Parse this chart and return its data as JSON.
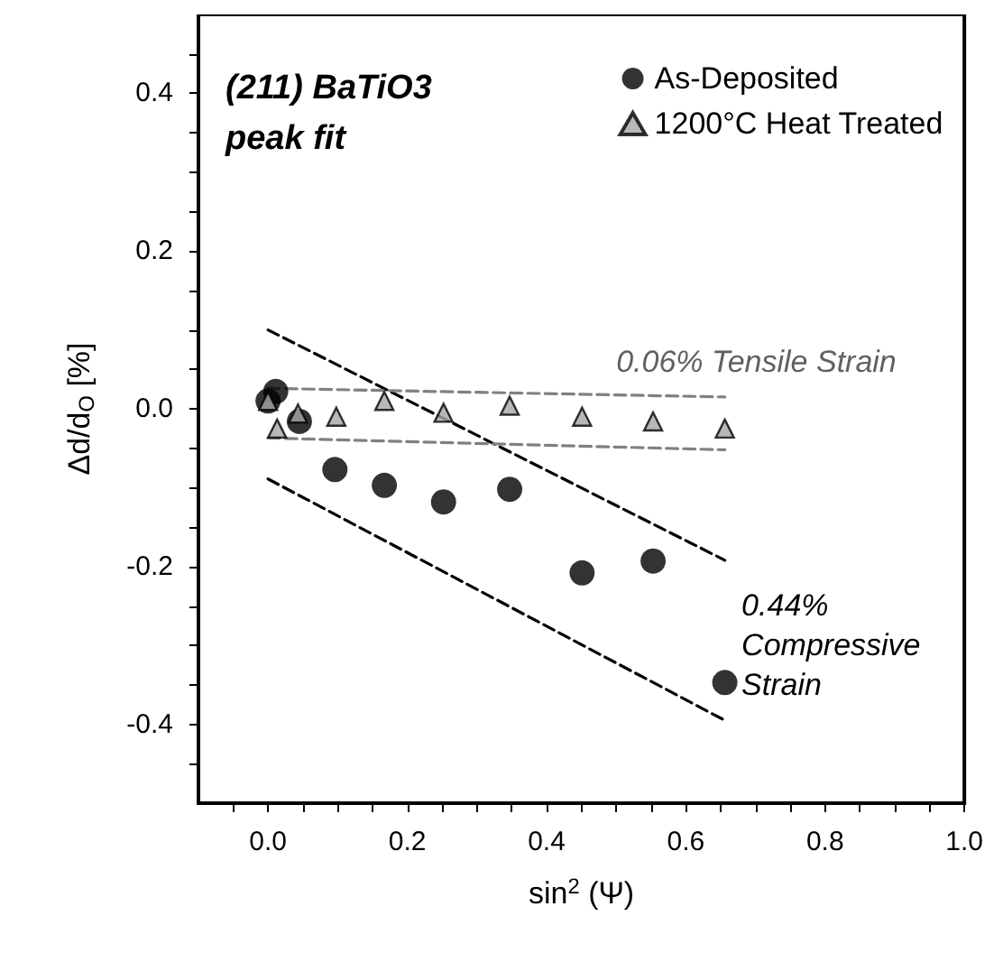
{
  "chart_data": {
    "type": "scatter",
    "title": "(211) BaTiO3\npeak fit",
    "xlabel": "sin$^{2}$ (Ψ)",
    "ylabel": "Δd/d$_{O}$ [%]",
    "xlim": [
      -0.1,
      1.0
    ],
    "ylim": [
      -0.5,
      0.5
    ],
    "xticks": [
      {
        "value": -0.05,
        "label": null
      },
      {
        "value": 0,
        "label": "0.0"
      },
      {
        "value": 0.05,
        "label": null
      },
      {
        "value": 0.1,
        "label": null
      },
      {
        "value": 0.15,
        "label": null
      },
      {
        "value": 0.2,
        "label": "0.2"
      },
      {
        "value": 0.25,
        "label": null
      },
      {
        "value": 0.3,
        "label": null
      },
      {
        "value": 0.35,
        "label": null
      },
      {
        "value": 0.4,
        "label": "0.4"
      },
      {
        "value": 0.45,
        "label": null
      },
      {
        "value": 0.5,
        "label": null
      },
      {
        "value": 0.55,
        "label": null
      },
      {
        "value": 0.6,
        "label": "0.6"
      },
      {
        "value": 0.65,
        "label": null
      },
      {
        "value": 0.7,
        "label": null
      },
      {
        "value": 0.75,
        "label": null
      },
      {
        "value": 0.8,
        "label": "0.8"
      },
      {
        "value": 0.85,
        "label": null
      },
      {
        "value": 0.9,
        "label": null
      },
      {
        "value": 0.95,
        "label": null
      },
      {
        "value": 1.0,
        "label": "1.0"
      }
    ],
    "yticks": [
      {
        "value": -0.45,
        "label": null
      },
      {
        "value": -0.4,
        "label": "-0.4"
      },
      {
        "value": -0.35,
        "label": null
      },
      {
        "value": -0.3,
        "label": null
      },
      {
        "value": -0.25,
        "label": null
      },
      {
        "value": -0.2,
        "label": "-0.2"
      },
      {
        "value": -0.15,
        "label": null
      },
      {
        "value": -0.1,
        "label": null
      },
      {
        "value": -0.05,
        "label": null
      },
      {
        "value": 0,
        "label": "0.0"
      },
      {
        "value": 0.05,
        "label": null
      },
      {
        "value": 0.1,
        "label": null
      },
      {
        "value": 0.15,
        "label": null
      },
      {
        "value": 0.2,
        "label": "0.2"
      },
      {
        "value": 0.25,
        "label": null
      },
      {
        "value": 0.3,
        "label": null
      },
      {
        "value": 0.35,
        "label": null
      },
      {
        "value": 0.4,
        "label": "0.4"
      },
      {
        "value": 0.45,
        "label": null
      }
    ],
    "grid": false,
    "legend": "top right",
    "series": [
      {
        "name": "As-Deposited",
        "marker": "circle",
        "color": "#000000",
        "x": [
          0.0,
          0.011,
          0.045,
          0.096,
          0.167,
          0.252,
          0.347,
          0.451,
          0.553,
          0.656
        ],
        "values": [
          0.01,
          0.022,
          -0.016,
          -0.077,
          -0.097,
          -0.118,
          -0.102,
          -0.208,
          -0.193,
          -0.347
        ]
      },
      {
        "name": "1200°C Heat Treated",
        "marker": "triangle",
        "color": "#a6a6a6",
        "x": [
          0.0,
          0.013,
          0.043,
          0.098,
          0.167,
          0.252,
          0.347,
          0.451,
          0.553,
          0.656
        ],
        "values": [
          0.01,
          -0.025,
          -0.006,
          -0.01,
          0.01,
          -0.005,
          0.004,
          -0.01,
          -0.016,
          -0.025
        ]
      },
      {
        "type": "line",
        "line_style": "dashed",
        "marker": "none",
        "color": "#000000",
        "x": [
          0.0,
          0.656
        ],
        "values": [
          0.1,
          -0.192
        ]
      },
      {
        "type": "line",
        "line_style": "dashed",
        "marker": "none",
        "color": "#000000",
        "x": [
          0.0,
          0.656
        ],
        "values": [
          -0.089,
          -0.395
        ]
      },
      {
        "type": "line",
        "line_style": "dashed",
        "marker": "none",
        "color": "#808080",
        "x": [
          0.0,
          0.656
        ],
        "values": [
          0.026,
          0.015
        ]
      },
      {
        "type": "line",
        "line_style": "dashed",
        "marker": "none",
        "color": "#808080",
        "x": [
          0.0,
          0.656
        ],
        "values": [
          -0.037,
          -0.052
        ]
      }
    ],
    "annotations": [
      "0.06% Tensile Strain",
      "0.44%\nCompressive\nStrain"
    ]
  }
}
